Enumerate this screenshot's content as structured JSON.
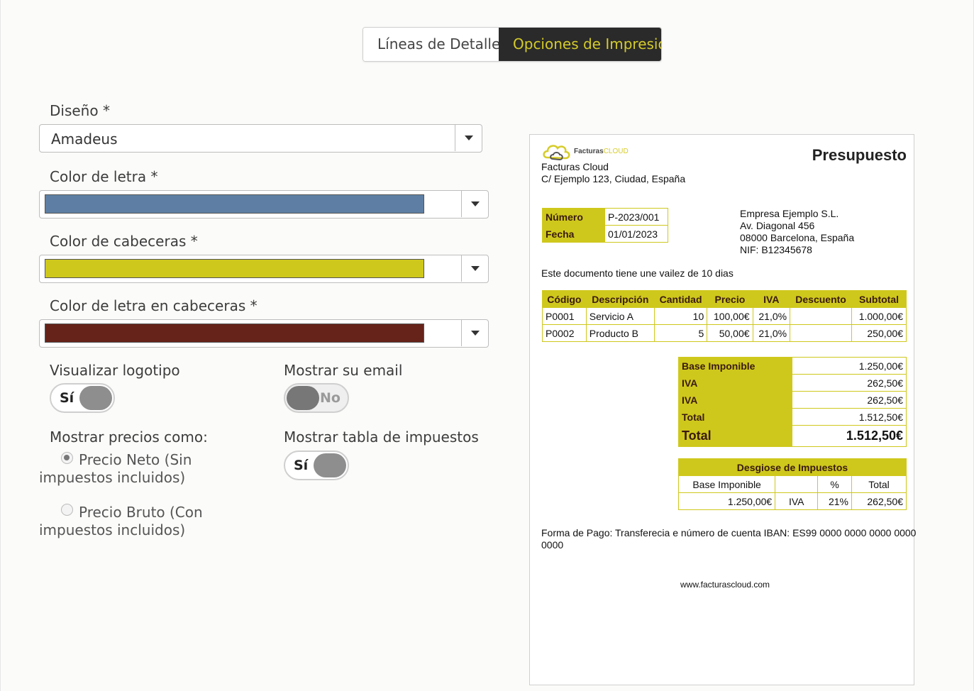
{
  "tabs": [
    {
      "label": "Líneas de Detalle",
      "active": false
    },
    {
      "label": "Opciones de Impresión",
      "active": true
    }
  ],
  "form": {
    "diseno": {
      "label": "Diseño *",
      "value": "Amadeus"
    },
    "color_letra": {
      "label": "Color de letra *",
      "color": "#5e7fa3"
    },
    "color_cabeceras": {
      "label": "Color de cabeceras *",
      "color": "#cfc81c"
    },
    "color_letra_cabeceras": {
      "label": "Color de letra en cabeceras *",
      "color": "#66231a"
    },
    "visualizar_logotipo": {
      "label": "Visualizar logotipo",
      "state": "Sí"
    },
    "mostrar_email": {
      "label": "Mostrar su email",
      "state": "No"
    },
    "mostrar_precios": {
      "label": "Mostrar precios como:",
      "options": [
        {
          "label": "Precio Neto (Sin impuestos incluidos)",
          "checked": true
        },
        {
          "label": "Precio Bruto (Con impuestos incluidos)",
          "checked": false
        }
      ]
    },
    "mostrar_tabla_impuestos": {
      "label": "Mostrar tabla de impuestos",
      "state": "Sí"
    }
  },
  "preview": {
    "logo_text_a": "Facturas",
    "logo_text_b": "CLOUD",
    "doc_title": "Presupuesto",
    "company_name": "Facturas Cloud",
    "company_address": "C/ Ejemplo 123, Ciudad, España",
    "meta": [
      {
        "label": "Número",
        "value": "P-2023/001"
      },
      {
        "label": "Fecha",
        "value": "01/01/2023"
      }
    ],
    "client": {
      "name": "Empresa Ejemplo S.L.",
      "street": "Av. Diagonal 456",
      "city": "08000 Barcelona, España",
      "nif": "NIF: B12345678"
    },
    "validity": "Este documento tiene une vailez de 10 dias",
    "lines_headers": [
      "Código",
      "Descripción",
      "Cantidad",
      "Precio",
      "IVA",
      "Descuento",
      "Subtotal"
    ],
    "lines": [
      {
        "code": "P0001",
        "desc": "Servicio A",
        "qty": "10",
        "price": "100,00€",
        "iva": "21,0%",
        "discount": "",
        "subtotal": "1.000,00€"
      },
      {
        "code": "P0002",
        "desc": "Producto B",
        "qty": "5",
        "price": "50,00€",
        "iva": "21,0%",
        "discount": "",
        "subtotal": "250,00€"
      }
    ],
    "totals": [
      {
        "label": "Base Imponible",
        "value": "1.250,00€"
      },
      {
        "label": "IVA",
        "value": "262,50€"
      },
      {
        "label": "IVA",
        "value": "262,50€"
      },
      {
        "label": "Total",
        "value": "1.512,50€"
      },
      {
        "label": "Total",
        "value": "1.512,50€"
      }
    ],
    "tax_breakdown": {
      "title": "Desgiose de Impuestos",
      "headers": [
        "Base Imponible",
        "",
        "%",
        "Total"
      ],
      "row": [
        "1.250,00€",
        "IVA",
        "21%",
        "262,50€"
      ]
    },
    "payment": "Forma de Pago: Transferecia e número de cuenta IBAN: ES99 0000 0000 0000 0000",
    "payment_cont": "0000",
    "website": "www.facturascloud.com"
  }
}
